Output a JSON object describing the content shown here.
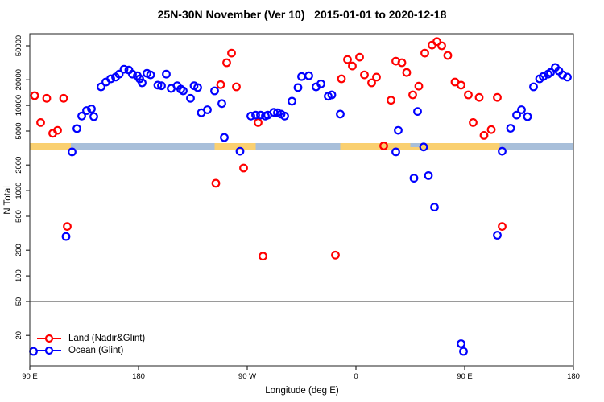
{
  "title": "25N-30N November (Ver 10)   2015-01-01 to 2020-12-18",
  "chart_data": {
    "type": "scatter",
    "title": "25N-30N November (Ver 10)   2015-01-01 to 2020-12-18",
    "xlabel": "Longitude (deg E)",
    "ylabel": "N Total",
    "x_axis": {
      "range_deg_east_continuous": [
        90,
        540
      ],
      "ticks": [
        {
          "lon": 90,
          "label": "90 E"
        },
        {
          "lon": 180,
          "label": "180"
        },
        {
          "lon": 270,
          "label": "90 W"
        },
        {
          "lon": 360,
          "label": "0"
        },
        {
          "lon": 450,
          "label": "90 E"
        },
        {
          "lon": 540,
          "label": "180"
        }
      ]
    },
    "y_axis": {
      "scale": "log",
      "ticks": [
        20,
        50,
        100,
        200,
        500,
        1000,
        2000,
        5000,
        10000,
        20000,
        50000
      ],
      "range": [
        9,
        69000
      ]
    },
    "legend_position": "bottom-left",
    "grid": false,
    "reference_line": {
      "value": 50,
      "color": "#9a9a9a"
    },
    "surface_band": {
      "description": "land/ocean strip drawn near N=3000",
      "colors": {
        "land": "#fad070",
        "ocean": "#a8bfda"
      },
      "segments": [
        {
          "type": "land",
          "from": 90,
          "to": 124
        },
        {
          "type": "ocean",
          "from": 124,
          "to": 243
        },
        {
          "type": "land",
          "from": 243,
          "to": 277
        },
        {
          "type": "ocean",
          "from": 277,
          "to": 347
        },
        {
          "type": "land",
          "from": 347,
          "to": 479
        },
        {
          "type": "ocean",
          "from": 479,
          "to": 540
        }
      ],
      "notch": {
        "type": "ocean",
        "from": 405,
        "to": 413
      }
    },
    "series": [
      {
        "name": "Land (Nadir&Glint)",
        "color": "#ff0000",
        "points": [
          [
            94,
            13000
          ],
          [
            99,
            6300
          ],
          [
            104,
            12100
          ],
          [
            109,
            4700
          ],
          [
            113,
            5100
          ],
          [
            118,
            12100
          ],
          [
            121,
            380
          ],
          [
            244,
            1220
          ],
          [
            248,
            17500
          ],
          [
            253,
            31700
          ],
          [
            257,
            41000
          ],
          [
            261,
            16500
          ],
          [
            267,
            1840
          ],
          [
            279,
            6300
          ],
          [
            283,
            170
          ],
          [
            343,
            175
          ],
          [
            348,
            20500
          ],
          [
            353,
            34500
          ],
          [
            357,
            29000
          ],
          [
            363,
            36800
          ],
          [
            367,
            22800
          ],
          [
            373,
            18400
          ],
          [
            377,
            21500
          ],
          [
            383,
            3350
          ],
          [
            389,
            11500
          ],
          [
            393,
            33000
          ],
          [
            398,
            31700
          ],
          [
            402,
            24300
          ],
          [
            407,
            13300
          ],
          [
            412,
            16800
          ],
          [
            417,
            41000
          ],
          [
            423,
            51000
          ],
          [
            427,
            56000
          ],
          [
            431,
            50000
          ],
          [
            436,
            38500
          ],
          [
            442,
            18800
          ],
          [
            447,
            17300
          ],
          [
            453,
            13300
          ],
          [
            457,
            6300
          ],
          [
            462,
            12400
          ],
          [
            466,
            4450
          ],
          [
            472,
            5200
          ],
          [
            477,
            12400
          ],
          [
            481,
            380
          ]
        ]
      },
      {
        "name": "Ocean (Glint)",
        "color": "#0000ff",
        "points": [
          [
            93,
            13
          ],
          [
            120,
            290
          ],
          [
            125,
            2850
          ],
          [
            129,
            5350
          ],
          [
            133,
            7500
          ],
          [
            137,
            8700
          ],
          [
            141,
            9100
          ],
          [
            143,
            7400
          ],
          [
            149,
            16500
          ],
          [
            153,
            18800
          ],
          [
            157,
            20500
          ],
          [
            161,
            21500
          ],
          [
            164,
            23300
          ],
          [
            168,
            26600
          ],
          [
            172,
            26000
          ],
          [
            175,
            23300
          ],
          [
            179,
            22300
          ],
          [
            181,
            20500
          ],
          [
            183,
            18400
          ],
          [
            187,
            23800
          ],
          [
            190,
            22800
          ],
          [
            196,
            17300
          ],
          [
            199,
            17000
          ],
          [
            203,
            23300
          ],
          [
            207,
            15800
          ],
          [
            212,
            17000
          ],
          [
            215,
            15500
          ],
          [
            217,
            14800
          ],
          [
            223,
            12100
          ],
          [
            226,
            17000
          ],
          [
            229,
            16200
          ],
          [
            232,
            8200
          ],
          [
            237,
            8900
          ],
          [
            243,
            14800
          ],
          [
            249,
            10500
          ],
          [
            251,
            4200
          ],
          [
            264,
            2900
          ],
          [
            273,
            7500
          ],
          [
            277,
            7700
          ],
          [
            281,
            7700
          ],
          [
            285,
            7500
          ],
          [
            287,
            7700
          ],
          [
            292,
            8300
          ],
          [
            295,
            8200
          ],
          [
            298,
            7900
          ],
          [
            301,
            7500
          ],
          [
            307,
            11200
          ],
          [
            312,
            16200
          ],
          [
            315,
            21800
          ],
          [
            321,
            22300
          ],
          [
            327,
            16500
          ],
          [
            331,
            17900
          ],
          [
            337,
            12800
          ],
          [
            340,
            13300
          ],
          [
            347,
            7900
          ],
          [
            393,
            2850
          ],
          [
            395,
            5100
          ],
          [
            408,
            1400
          ],
          [
            411,
            8500
          ],
          [
            416,
            3250
          ],
          [
            420,
            1500
          ],
          [
            425,
            640
          ],
          [
            447,
            16
          ],
          [
            449,
            13
          ],
          [
            477,
            300
          ],
          [
            481,
            2900
          ],
          [
            488,
            5400
          ],
          [
            493,
            7700
          ],
          [
            497,
            8900
          ],
          [
            502,
            7400
          ],
          [
            507,
            16500
          ],
          [
            512,
            20500
          ],
          [
            515,
            21800
          ],
          [
            519,
            23300
          ],
          [
            521,
            24300
          ],
          [
            525,
            27900
          ],
          [
            528,
            25400
          ],
          [
            531,
            22800
          ],
          [
            535,
            21500
          ]
        ]
      }
    ]
  },
  "legend": {
    "items": [
      {
        "label": "Land (Nadir&Glint)",
        "color": "#ff0000"
      },
      {
        "label": "Ocean (Glint)",
        "color": "#0000ff"
      }
    ]
  },
  "axis_titles": {
    "x": "Longitude (deg E)",
    "y": "N Total"
  }
}
